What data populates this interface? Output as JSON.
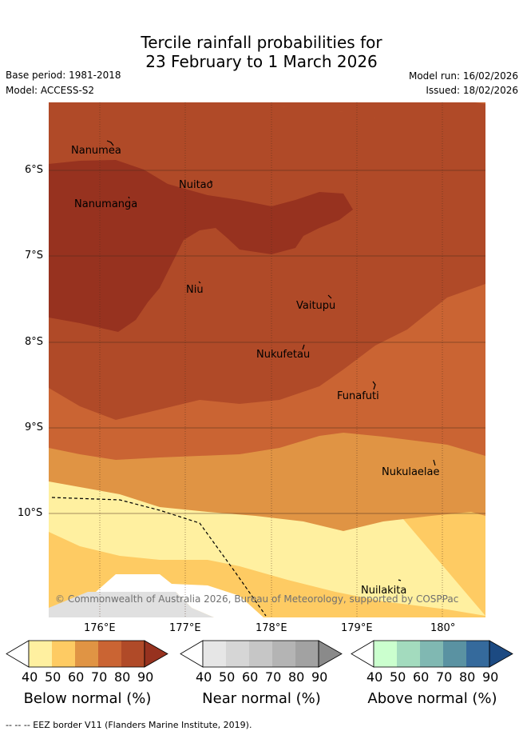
{
  "title": {
    "line1": "Tercile rainfall probabilities for",
    "line2": "23 February to 1 March 2026"
  },
  "meta": {
    "base_period": "Base period: 1981-2018",
    "model": "Model: ACCESS-S2",
    "model_run": "Model run: 16/02/2026",
    "issued": "Issued: 18/02/2026"
  },
  "map": {
    "lat_labels": [
      "6°S",
      "7°S",
      "8°S",
      "9°S",
      "10°S"
    ],
    "lon_labels": [
      "176°E",
      "177°E",
      "178°E",
      "179°E",
      "180°"
    ],
    "places": [
      "Nanumea",
      "Nuitao",
      "Nanumanga",
      "Niu",
      "Vaitupu",
      "Nukufetau",
      "Funafuti",
      "Nukulaelae",
      "Nuilakita"
    ],
    "copyright": "© Commonwealth of Australia 2026, Bureau of Meteorology, supported by COSPPac"
  },
  "colorbars": [
    {
      "title": "Below normal (%)",
      "ticks": [
        "40",
        "50",
        "60",
        "70",
        "80",
        "90"
      ],
      "colors": [
        "#ffffff",
        "#fff0a0",
        "#fecb63",
        "#e09444",
        "#ca6433",
        "#b04a28",
        "#97321f"
      ]
    },
    {
      "title": "Near normal (%)",
      "ticks": [
        "40",
        "50",
        "60",
        "70",
        "80",
        "90"
      ],
      "colors": [
        "#ffffff",
        "#e6e6e6",
        "#d6d6d6",
        "#c6c6c6",
        "#b4b4b4",
        "#a2a2a2",
        "#8a8a8a"
      ]
    },
    {
      "title": "Above normal (%)",
      "ticks": [
        "40",
        "50",
        "60",
        "70",
        "80",
        "90"
      ],
      "colors": [
        "#ffffff",
        "#cbffce",
        "#a3dbbe",
        "#80b8b2",
        "#5a92a2",
        "#356a9c",
        "#1c4a82"
      ]
    }
  ],
  "footer": "-- -- -- EEZ border V11 (Flanders Marine Institute, 2019)."
}
